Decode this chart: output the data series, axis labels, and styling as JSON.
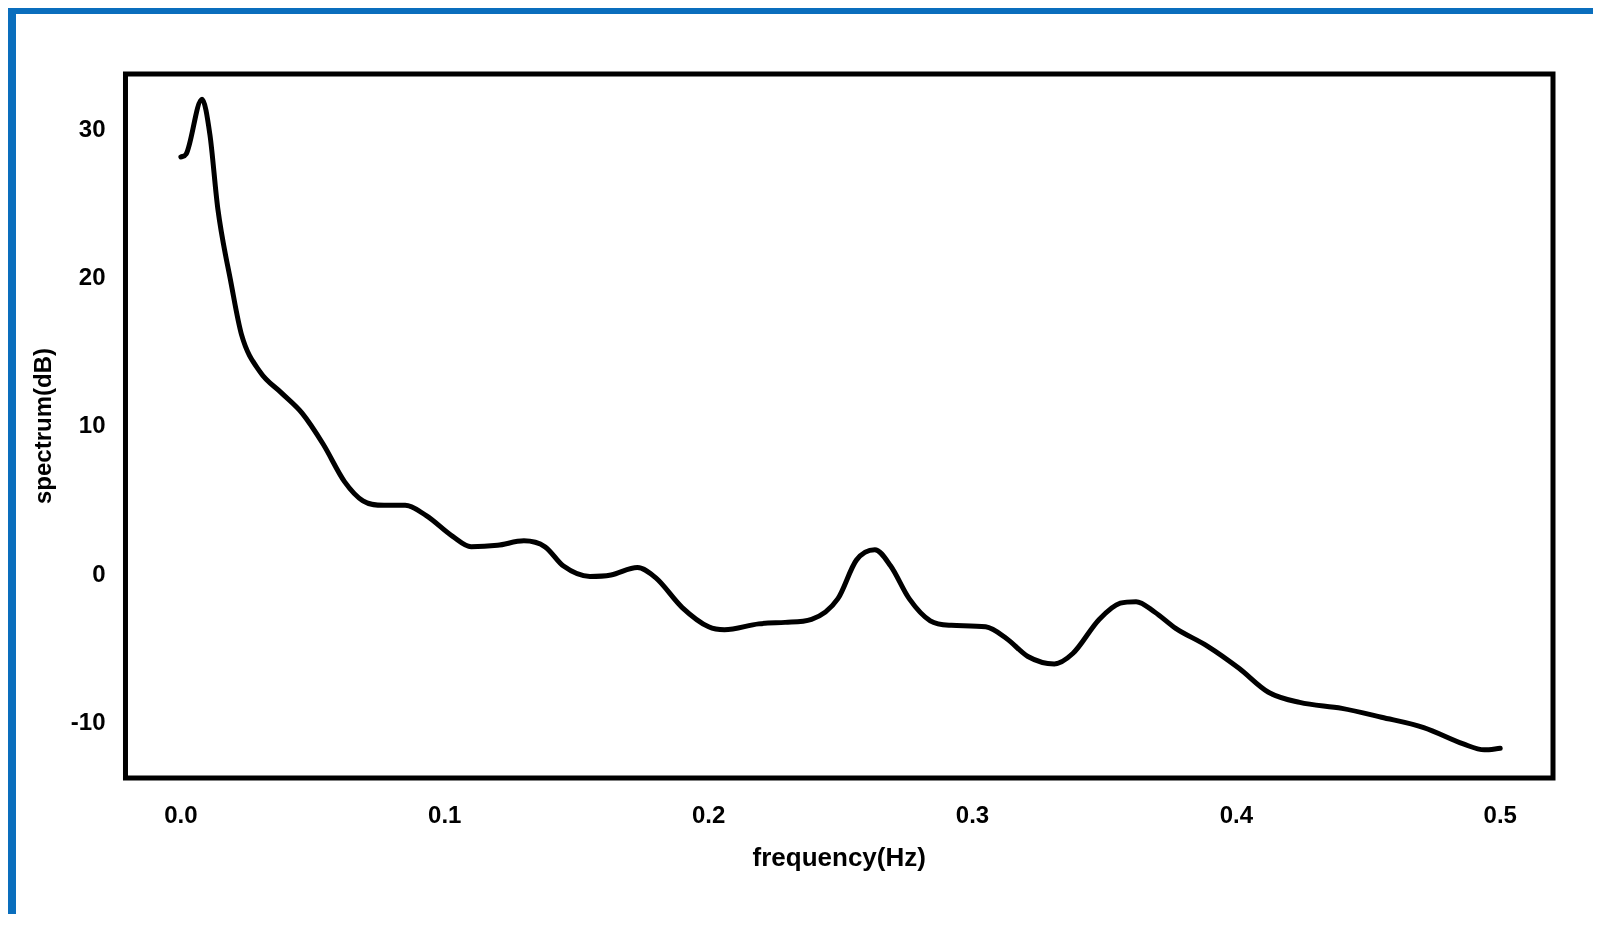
{
  "chart_data": {
    "type": "line",
    "xlabel": "frequency(Hz)",
    "ylabel": "spectrum(dB)",
    "x": [
      0,
      0.002,
      0.008,
      0.011,
      0.014,
      0.019,
      0.023,
      0.03,
      0.038,
      0.046,
      0.054,
      0.062,
      0.069,
      0.077,
      0.085,
      0.093,
      0.103,
      0.11,
      0.12,
      0.13,
      0.138,
      0.145,
      0.155,
      0.163,
      0.173,
      0.18,
      0.19,
      0.2,
      0.206,
      0.219,
      0.229,
      0.239,
      0.249,
      0.256,
      0.263,
      0.269,
      0.276,
      0.284,
      0.292,
      0.305,
      0.313,
      0.321,
      0.331,
      0.338,
      0.348,
      0.356,
      0.362,
      0.369,
      0.377,
      0.389,
      0.401,
      0.412,
      0.424,
      0.44,
      0.455,
      0.471,
      0.486,
      0.494,
      0.5
    ],
    "series": [
      {
        "color": "#000000",
        "values": [
          28.2,
          28.4,
          32.1,
          29.7,
          24.7,
          19.7,
          16.2,
          13.7,
          12.3,
          10.9,
          8.8,
          6.3,
          5.0,
          4.7,
          4.7,
          4.0,
          2.6,
          1.9,
          2.0,
          2.3,
          1.9,
          0.6,
          -0.1,
          0,
          0.5,
          -0.2,
          -2.2,
          -3.5,
          -3.7,
          -3.3,
          -3.2,
          -3.0,
          -1.6,
          1.0,
          1.7,
          0.6,
          -1.6,
          -3.1,
          -3.4,
          -3.5,
          -4.3,
          -5.5,
          -6.0,
          -5.3,
          -3.0,
          -1.9,
          -1.8,
          -2.5,
          -3.6,
          -4.8,
          -6.3,
          -7.9,
          -8.6,
          -9.0,
          -9.6,
          -10.3,
          -11.4,
          -11.8,
          -11.7
        ]
      }
    ],
    "xlim": [
      -0.021,
      0.52
    ],
    "ylim": [
      -13.7,
      33.8
    ],
    "xticks": [
      {
        "value": 0,
        "label": "0.0"
      },
      0.1,
      0.2,
      0.3,
      0.4,
      0.5
    ],
    "yticks": [
      -10,
      0,
      10,
      20,
      30
    ],
    "grid": false,
    "legend": false,
    "marker": "none",
    "line_style": "solid"
  }
}
